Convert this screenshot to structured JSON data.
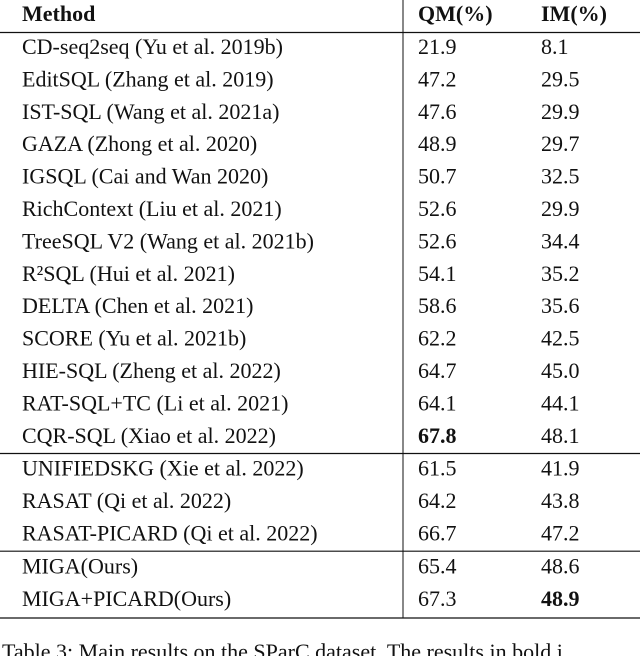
{
  "table": {
    "header": [
      "Method",
      "QM(%)",
      "IM(%)"
    ],
    "groups": [
      [
        {
          "cells": [
            "CD-seq2seq (Yu et al. 2019b)",
            "21.9",
            "8.1"
          ]
        },
        {
          "cells": [
            "EditSQL (Zhang et al. 2019)",
            "47.2",
            "29.5"
          ]
        },
        {
          "cells": [
            "IST-SQL (Wang et al. 2021a)",
            "47.6",
            "29.9"
          ]
        },
        {
          "cells": [
            "GAZA (Zhong et al. 2020)",
            "48.9",
            "29.7"
          ]
        },
        {
          "cells": [
            "IGSQL (Cai and Wan 2020)",
            "50.7",
            "32.5"
          ]
        },
        {
          "cells": [
            "RichContext (Liu et al. 2021)",
            "52.6",
            "29.9"
          ]
        },
        {
          "cells": [
            "TreeSQL V2 (Wang et al. 2021b)",
            "52.6",
            "34.4"
          ]
        },
        {
          "cells": [
            "R²SQL (Hui et al. 2021)",
            "54.1",
            "35.2"
          ]
        },
        {
          "cells": [
            "DELTA (Chen et al. 2021)",
            "58.6",
            "35.6"
          ]
        },
        {
          "cells": [
            "SCORE (Yu et al. 2021b)",
            "62.2",
            "42.5"
          ]
        },
        {
          "cells": [
            "HIE-SQL (Zheng et al. 2022)",
            "64.7",
            "45.0"
          ]
        },
        {
          "cells": [
            "RAT-SQL+TC (Li et al. 2021)",
            "64.1",
            "44.1"
          ]
        },
        {
          "cells": [
            "CQR-SQL (Xiao et al. 2022)",
            "67.8",
            "48.1"
          ],
          "bold": [
            1
          ]
        }
      ],
      [
        {
          "cells": [
            "UNIFIEDSKG (Xie et al. 2022)",
            "61.5",
            "41.9"
          ]
        },
        {
          "cells": [
            "RASAT (Qi et al. 2022)",
            "64.2",
            "43.8"
          ]
        },
        {
          "cells": [
            "RASAT-PICARD (Qi et al. 2022)",
            "66.7",
            "47.2"
          ]
        }
      ],
      [
        {
          "cells": [
            "MIGA(Ours)",
            "65.4",
            "48.6"
          ]
        },
        {
          "cells": [
            "MIGA+PICARD(Ours)",
            "67.3",
            "48.9"
          ],
          "bold": [
            2
          ]
        }
      ]
    ]
  },
  "caption": "Table 3: Main results on the SParC dataset. The results in bold i"
}
